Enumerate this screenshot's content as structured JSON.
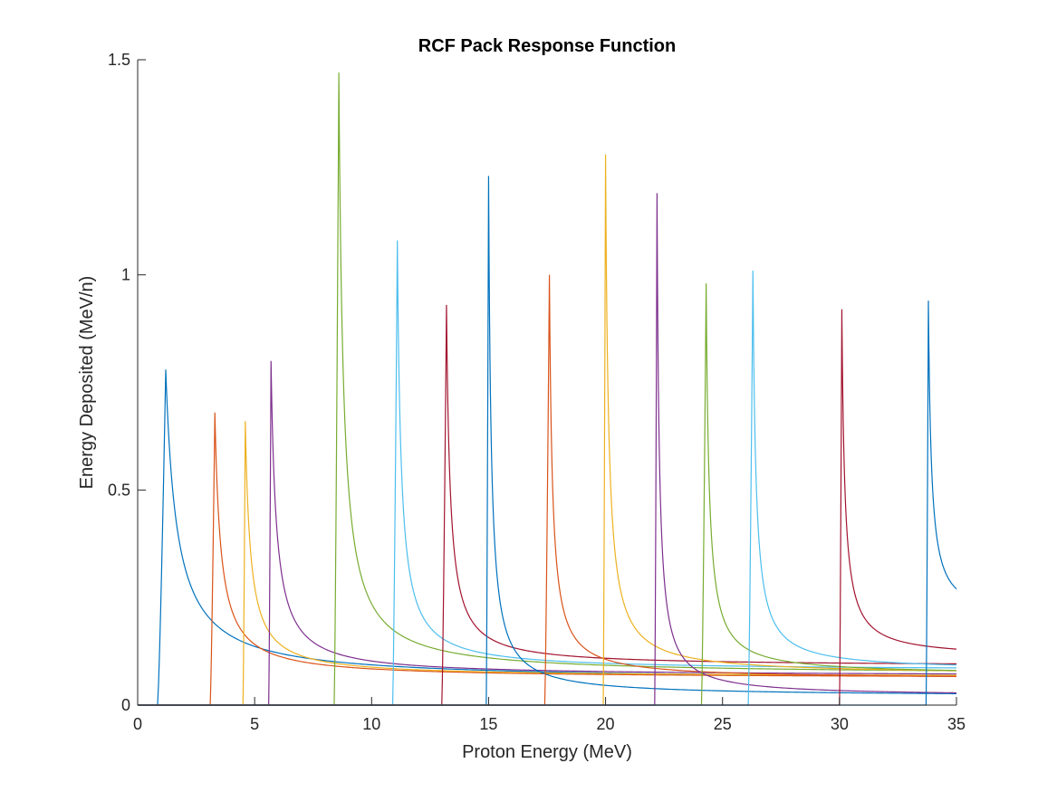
{
  "chart_data": {
    "type": "line",
    "title": "RCF Pack Response Function",
    "xlabel": "Proton Energy (MeV)",
    "ylabel": "Energy Deposited (MeV/n)",
    "xlim": [
      0,
      35
    ],
    "ylim": [
      0,
      1.5
    ],
    "xticks": [
      0,
      5,
      10,
      15,
      20,
      25,
      30,
      35
    ],
    "yticks": [
      0,
      0.5,
      1,
      1.5
    ],
    "xtick_labels": [
      "0",
      "5",
      "10",
      "15",
      "20",
      "25",
      "30",
      "35"
    ],
    "ytick_labels": [
      "0",
      "0.5",
      "1",
      "1.5"
    ],
    "grid": false,
    "legend": "none",
    "axis_color": "#262626",
    "colors": [
      "#0072BD",
      "#D95319",
      "#EDB120",
      "#7E2F8E",
      "#77AC30",
      "#4DBEEE",
      "#A2142F"
    ],
    "series": [
      {
        "onset": 0.85,
        "peak_x": 1.2,
        "peak_y": 0.78,
        "tail_y": 0.057,
        "tail_k": 1.5,
        "color": "#0072BD"
      },
      {
        "onset": 3.1,
        "peak_x": 3.3,
        "peak_y": 0.68,
        "tail_y": 0.062,
        "tail_k": 0.8,
        "color": "#D95319"
      },
      {
        "onset": 4.5,
        "peak_x": 4.6,
        "peak_y": 0.66,
        "tail_y": 0.065,
        "tail_k": 0.7,
        "color": "#EDB120"
      },
      {
        "onset": 5.6,
        "peak_x": 5.7,
        "peak_y": 0.8,
        "tail_y": 0.067,
        "tail_k": 0.7,
        "color": "#7E2F8E"
      },
      {
        "onset": 8.4,
        "peak_x": 8.6,
        "peak_y": 1.47,
        "tail_y": 0.07,
        "tail_k": 0.6,
        "color": "#77AC30"
      },
      {
        "onset": 10.9,
        "peak_x": 11.1,
        "peak_y": 1.08,
        "tail_y": 0.08,
        "tail_k": 0.5,
        "color": "#4DBEEE"
      },
      {
        "onset": 13.0,
        "peak_x": 13.2,
        "peak_y": 0.93,
        "tail_y": 0.09,
        "tail_k": 0.5,
        "color": "#A2142F"
      },
      {
        "onset": 14.9,
        "peak_x": 15.0,
        "peak_y": 1.23,
        "tail_y": 0.02,
        "tail_k": 0.35,
        "color": "#0072BD"
      },
      {
        "onset": 17.4,
        "peak_x": 17.6,
        "peak_y": 1.0,
        "tail_y": 0.06,
        "tail_k": 0.4,
        "color": "#D95319"
      },
      {
        "onset": 19.9,
        "peak_x": 20.0,
        "peak_y": 1.28,
        "tail_y": 0.07,
        "tail_k": 0.4,
        "color": "#EDB120"
      },
      {
        "onset": 22.1,
        "peak_x": 22.2,
        "peak_y": 1.19,
        "tail_y": 0.02,
        "tail_k": 0.3,
        "color": "#7E2F8E"
      },
      {
        "onset": 24.1,
        "peak_x": 24.3,
        "peak_y": 0.98,
        "tail_y": 0.07,
        "tail_k": 0.4,
        "color": "#77AC30"
      },
      {
        "onset": 26.1,
        "peak_x": 26.3,
        "peak_y": 1.01,
        "tail_y": 0.08,
        "tail_k": 0.4,
        "color": "#4DBEEE"
      },
      {
        "onset": 30.0,
        "peak_x": 30.1,
        "peak_y": 0.92,
        "tail_y": 0.11,
        "tail_k": 0.4,
        "color": "#A2142F"
      },
      {
        "onset": 33.7,
        "peak_x": 33.8,
        "peak_y": 0.94,
        "tail_y": 0.2,
        "tail_k": 0.4,
        "color": "#0072BD"
      }
    ]
  }
}
